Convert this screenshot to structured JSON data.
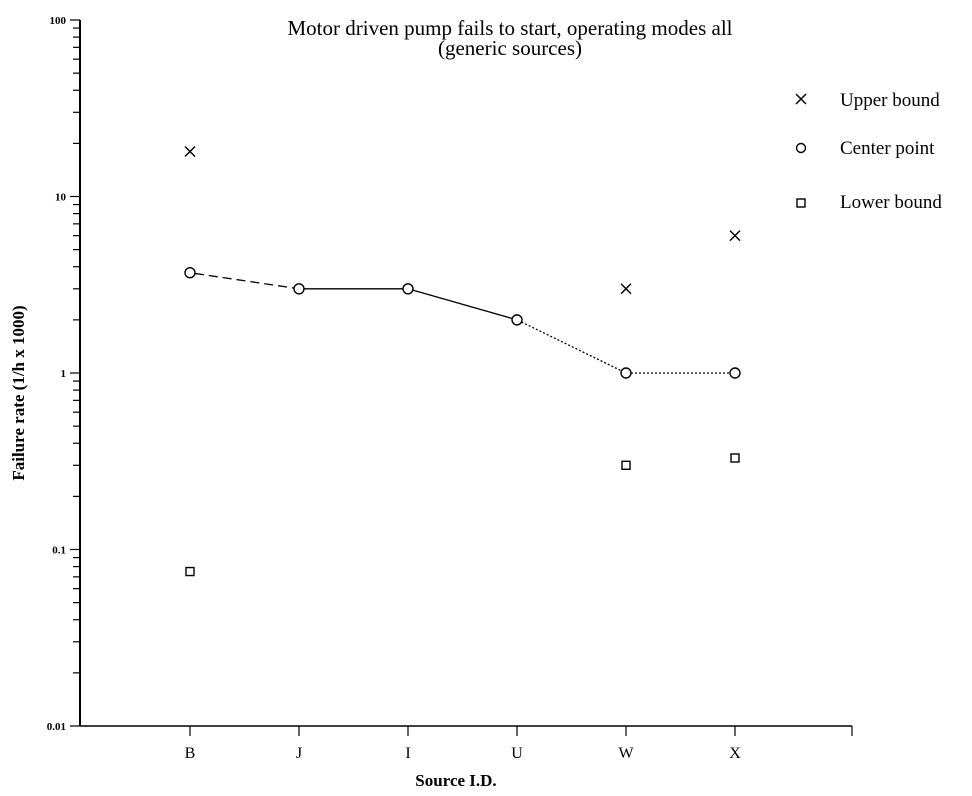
{
  "chart_data": {
    "type": "scatter",
    "title": "Motor driven pump fails to start, operating modes all",
    "subtitle": "(generic sources)",
    "xlabel": "Source I.D.",
    "ylabel": "Failure rate (1/h x 1000)",
    "yscale": "log",
    "ylim": [
      0.01,
      100
    ],
    "yticks": [
      "100",
      "10",
      "1",
      "0.1",
      "0.01"
    ],
    "categories": [
      "B",
      "J",
      "I",
      "U",
      "W",
      "X"
    ],
    "series": [
      {
        "name": "Upper bound",
        "marker": "x",
        "values": [
          18,
          null,
          null,
          null,
          3,
          6
        ]
      },
      {
        "name": "Center point",
        "marker": "circle",
        "values": [
          3.7,
          3.0,
          3.0,
          2.0,
          1.0,
          1.0
        ]
      },
      {
        "name": "Lower bound",
        "marker": "square",
        "values": [
          0.075,
          null,
          null,
          null,
          0.3,
          0.33
        ]
      }
    ],
    "line_styles": [
      "dashed",
      "solid",
      "solid",
      "dotted",
      "dotted",
      "solid"
    ],
    "grid": false,
    "legend_position": "right"
  }
}
